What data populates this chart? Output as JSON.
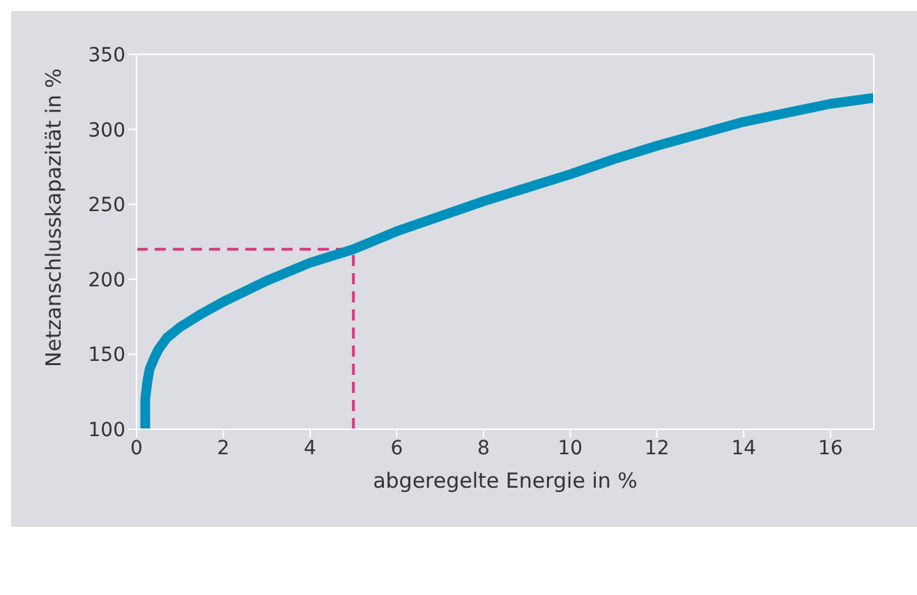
{
  "chart_data": {
    "type": "line",
    "xlabel": "abgeregelte Energie in %",
    "ylabel": "Netzanschlusskapazität in %",
    "x": [
      0.2,
      0.2,
      0.25,
      0.3,
      0.4,
      0.5,
      0.7,
      1,
      1.5,
      2,
      3,
      4,
      5,
      6,
      7,
      8,
      9,
      10,
      11,
      12,
      13,
      14,
      15,
      16,
      17
    ],
    "series": [
      {
        "color": "#0090bc",
        "values": [
          100,
          120,
          132,
          140,
          147,
          153,
          161,
          168,
          177,
          185,
          199,
          211,
          220,
          232,
          242,
          252,
          261,
          270,
          280,
          289,
          297,
          305,
          311,
          317,
          321
        ]
      }
    ],
    "xlim": [
      0,
      17
    ],
    "xticks": [
      0,
      2,
      4,
      6,
      8,
      10,
      12,
      14,
      16
    ],
    "ylim": [
      100,
      350
    ],
    "yticks": [
      100,
      150,
      200,
      250,
      300,
      350
    ],
    "grid": false,
    "legend": false,
    "marker": "none",
    "line_style": "solid",
    "ref_lines": [
      {
        "axis": "y",
        "value": 220,
        "color": "#d63b83",
        "line_style": "dashed"
      },
      {
        "axis": "x",
        "value": 5,
        "color": "#d63b83",
        "line_style": "dashed"
      }
    ]
  }
}
